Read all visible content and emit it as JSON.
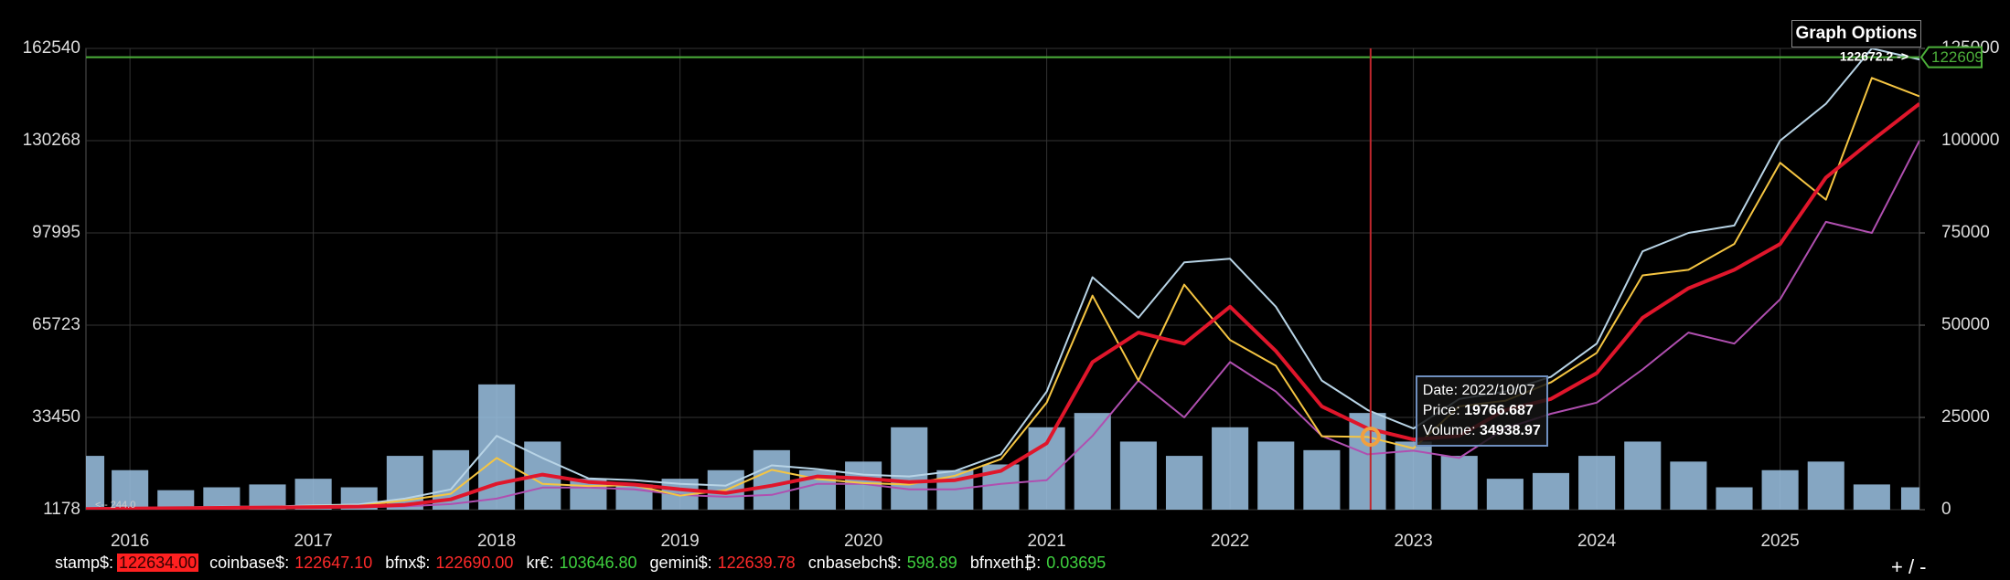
{
  "chart_data": {
    "type": "line",
    "x": [
      2015.76,
      2016.0,
      2016.25,
      2016.5,
      2016.75,
      2017.0,
      2017.25,
      2017.5,
      2017.75,
      2018.0,
      2018.25,
      2018.5,
      2018.75,
      2019.0,
      2019.25,
      2019.5,
      2019.75,
      2020.0,
      2020.25,
      2020.5,
      2020.75,
      2021.0,
      2021.25,
      2021.5,
      2021.75,
      2022.0,
      2022.25,
      2022.5,
      2022.75,
      2023.0,
      2023.25,
      2023.5,
      2023.75,
      2024.0,
      2024.25,
      2024.5,
      2024.75,
      2025.0,
      2025.25,
      2025.5,
      2025.76
    ],
    "xlim": [
      2015.76,
      2025.76
    ],
    "xticks": [
      2016,
      2017,
      2018,
      2019,
      2020,
      2021,
      2022,
      2023,
      2024,
      2025
    ],
    "ylim": [
      1178,
      162540
    ],
    "yticks": [
      1178,
      33450,
      65723,
      97995,
      130268,
      162540
    ],
    "y2lim": [
      0,
      125000
    ],
    "y2ticks": [
      0,
      25000,
      50000,
      75000,
      100000,
      125000
    ],
    "grid": true,
    "series": [
      {
        "type": "bar",
        "color": "#9cc3e4",
        "values": [
          20000,
          15000,
          8000,
          9000,
          10000,
          12000,
          9000,
          20000,
          22000,
          45000,
          25000,
          12000,
          10000,
          12000,
          15000,
          22000,
          15000,
          18000,
          30000,
          15000,
          17000,
          30000,
          35000,
          25000,
          20000,
          30000,
          25000,
          22000,
          35000,
          25000,
          20000,
          12000,
          14000,
          20000,
          25000,
          18000,
          9000,
          15000,
          18000,
          10000,
          9000
        ]
      },
      {
        "type": "line",
        "axis": "y2",
        "color": "#b8d4e6",
        "values": [
          300,
          500,
          550,
          800,
          800,
          1200,
          1400,
          3000,
          5500,
          20000,
          14000,
          8500,
          8000,
          7000,
          6500,
          12000,
          11000,
          9500,
          9000,
          10500,
          15000,
          32000,
          63000,
          52000,
          67000,
          68000,
          55000,
          35000,
          27000,
          22000,
          30000,
          32000,
          36000,
          45000,
          70000,
          75000,
          77000,
          100000,
          110000,
          125000,
          122000
        ]
      },
      {
        "type": "line",
        "axis": "y2",
        "color": "#b04fb0",
        "values": [
          150,
          250,
          300,
          400,
          500,
          550,
          700,
          900,
          1500,
          3000,
          6000,
          6000,
          5500,
          4000,
          3500,
          4000,
          7000,
          7000,
          5500,
          5500,
          7000,
          8000,
          20000,
          35000,
          25000,
          40000,
          32000,
          20000,
          15000,
          16000,
          14000,
          22000,
          26000,
          29000,
          38000,
          48000,
          45000,
          57000,
          78000,
          75000,
          100000
        ]
      },
      {
        "type": "line",
        "axis": "y2",
        "color": "#f5c542",
        "values": [
          250,
          430,
          420,
          670,
          610,
          1000,
          1100,
          2500,
          4300,
          14000,
          7000,
          6400,
          6600,
          3800,
          5300,
          10800,
          8300,
          7200,
          6800,
          9200,
          13700,
          29000,
          58000,
          35000,
          61000,
          46000,
          39000,
          19900,
          19700,
          16600,
          28000,
          29500,
          34500,
          42500,
          63500,
          65000,
          72000,
          94000,
          84000,
          117000,
          112000
        ]
      },
      {
        "type": "line",
        "axis": "y2",
        "color": "#e0162b",
        "values": [
          200,
          300,
          400,
          500,
          600,
          700,
          850,
          1300,
          2800,
          7000,
          9500,
          7500,
          6800,
          5500,
          4500,
          6500,
          9000,
          8500,
          7500,
          8000,
          10500,
          18000,
          40000,
          48000,
          45000,
          55000,
          43000,
          28000,
          22000,
          19000,
          20000,
          27000,
          30000,
          37000,
          52000,
          60000,
          65000,
          72000,
          90000,
          100000,
          110000
        ]
      }
    ],
    "last_price": 122609,
    "last_price_color": "#4caf3a",
    "last_price_note": "122672.2 ->",
    "corner_note": "<-- 244.0",
    "cursor": {
      "date_label": "Date:",
      "date": "2022/10/07",
      "price_label": "Price:",
      "price": 19766.687,
      "volume_label": "Volume:",
      "volume": 34938.97,
      "color": "#c0272d"
    }
  },
  "graph_options": "Graph Options",
  "zoom": "+ / -",
  "ticker": [
    {
      "label": "stamp$:",
      "value": "122634.00",
      "color": "#ff2020",
      "highlight": true
    },
    {
      "label": "coinbase$:",
      "value": "122647.10",
      "color": "#ff2a2a",
      "highlight": false
    },
    {
      "label": "bfnx$:",
      "value": "122690.00",
      "color": "#ff2a2a",
      "highlight": false
    },
    {
      "label": "kr€:",
      "value": "103646.80",
      "color": "#3fd13f",
      "highlight": false
    },
    {
      "label": "gemini$:",
      "value": "122639.78",
      "color": "#ff2a2a",
      "highlight": false
    },
    {
      "label": "cnbasebch$:",
      "value": "598.89",
      "color": "#3fd13f",
      "highlight": false
    },
    {
      "label": "bfnxeth₿:",
      "value": "0.03695",
      "color": "#3fd13f",
      "highlight": false
    }
  ]
}
